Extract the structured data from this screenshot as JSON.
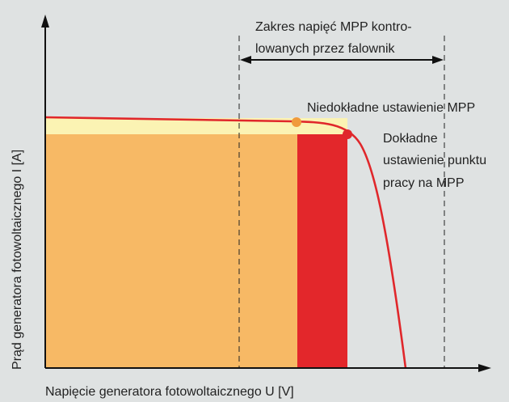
{
  "axes": {
    "x_label": "Napięcie generatora fotowoltaicznego U [V]",
    "y_label": "Prąd generatora fotowoltaicznego I [A]"
  },
  "annotations": {
    "mpp_range_line1": "Zakres napięć MPP kontro-",
    "mpp_range_line2": "lowanych przez falownik",
    "inaccurate_mpp": "Niedokładne ustawienie MPP",
    "accurate_line1": "Dokładne",
    "accurate_line2": "ustawienie punktu",
    "accurate_line3": "pracy na MPP"
  },
  "colors": {
    "background": "#dfe2e2",
    "curve": "#e0272b",
    "power_area_inaccurate": "#f7b965",
    "power_gain_accurate": "#e3272b",
    "current_band": "#fbf3b3",
    "inaccurate_point": "#f09a3c",
    "accurate_point": "#e0272b",
    "axis": "#111111"
  }
}
